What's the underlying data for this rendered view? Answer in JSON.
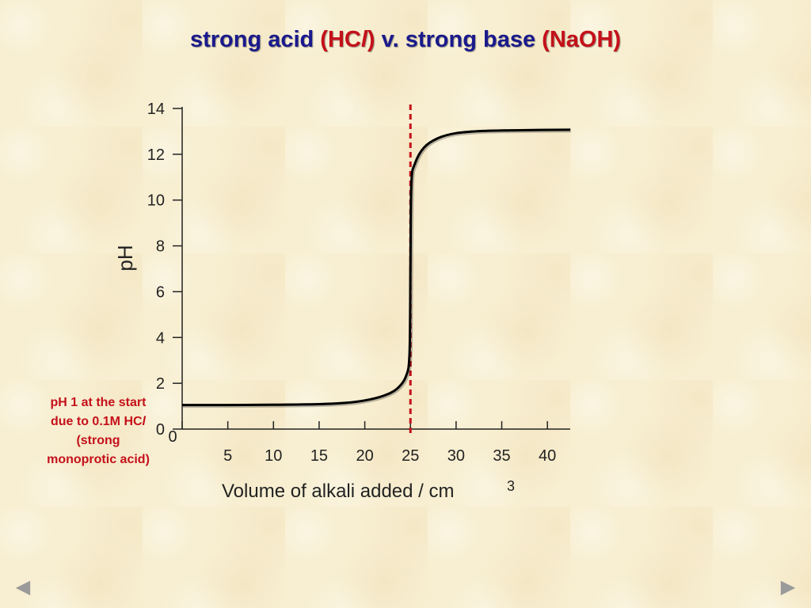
{
  "title": {
    "part1": "strong acid ",
    "part2_open": "(HC",
    "part2_ital": "l",
    "part2_close": ")",
    "part3": " v. strong base ",
    "part4": "(NaOH)"
  },
  "annotation": {
    "line1": "pH 1 at the start",
    "line2_pre": "due to 0.1M HC",
    "line2_ital": "l",
    "line3": "(strong",
    "line4": "monoprotic acid)"
  },
  "nav": {
    "prev_icon": "triangle-left-icon",
    "next_icon": "triangle-right-icon",
    "prev_glyph": "◀",
    "next_glyph": "▶"
  },
  "chart_data": {
    "type": "line",
    "xlabel": "Volume of alkali added / cm",
    "xlabel_sup": "3",
    "ylabel": "pH",
    "xlim": [
      0,
      42.5
    ],
    "ylim": [
      0,
      14
    ],
    "x_ticks": [
      0,
      5,
      10,
      15,
      20,
      25,
      30,
      35,
      40
    ],
    "x_tick_labels": [
      "",
      "5",
      "10",
      "15",
      "20",
      "25",
      "30",
      "35",
      "40"
    ],
    "y_ticks": [
      0,
      2,
      4,
      6,
      8,
      10,
      12,
      14
    ],
    "y_tick_labels": [
      "0",
      "2",
      "4",
      "6",
      "8",
      "10",
      "12",
      "14"
    ],
    "grid": false,
    "equivalence_line": {
      "x": 25,
      "color": "#c4101a",
      "style": "dashed"
    },
    "series": [
      {
        "color": "#000000",
        "x": [
          0,
          5,
          10,
          15,
          18,
          20,
          22,
          23.5,
          24.5,
          24.9,
          25.0,
          25.1,
          25.5,
          26.5,
          28,
          30,
          33,
          37,
          42.5
        ],
        "y": [
          1.05,
          1.05,
          1.06,
          1.09,
          1.15,
          1.25,
          1.45,
          1.75,
          2.3,
          3.3,
          7.0,
          10.7,
          11.6,
          12.3,
          12.7,
          12.92,
          13.02,
          13.05,
          13.07
        ]
      }
    ]
  }
}
